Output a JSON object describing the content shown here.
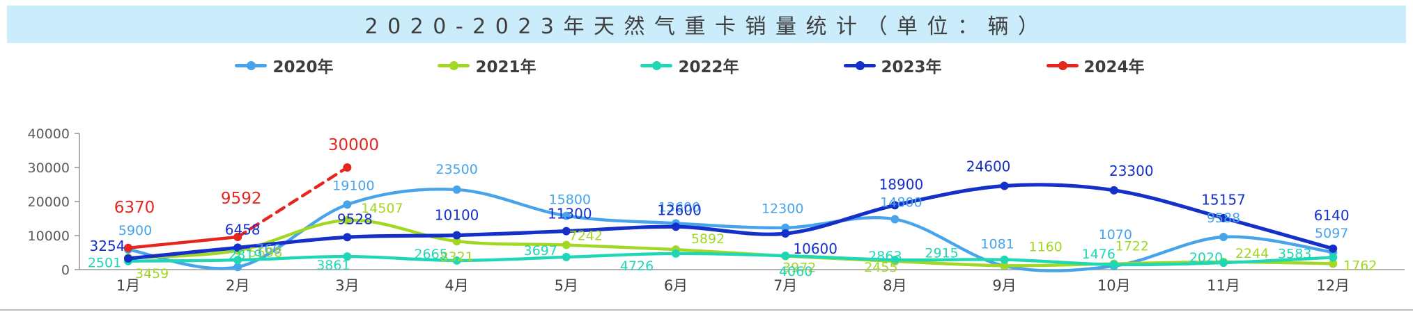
{
  "title": "2020-2023年天然气重卡销量统计（单位：辆）",
  "banner_bg": "#CBEDFB",
  "axis_color": "#9a9a9a",
  "chart_data": {
    "type": "line",
    "title": "2020-2023年天然气重卡销量统计（单位：辆）",
    "categories": [
      "1月",
      "2月",
      "3月",
      "4月",
      "5月",
      "6月",
      "7月",
      "8月",
      "9月",
      "10月",
      "11月",
      "12月"
    ],
    "y_axis": {
      "min": 0,
      "max": 40000,
      "step": 10000,
      "tick_labels": [
        "0",
        "10000",
        "20000",
        "30000",
        "40000"
      ]
    },
    "grid": "off",
    "legend_position": "top",
    "series": [
      {
        "name": "2020年",
        "color": "#47A4EB",
        "dashed": false,
        "label_size": 19,
        "values": [
          5900,
          766,
          19100,
          23500,
          15800,
          13600,
          12300,
          14800,
          1081,
          1070,
          9588,
          5097
        ],
        "label_offsets": [
          [
            10,
            -28
          ],
          [
            44,
            -26
          ],
          [
            9,
            -28
          ],
          [
            0,
            -30
          ],
          [
            5,
            -24
          ],
          [
            5,
            -24
          ],
          [
            -4,
            -28
          ],
          [
            9,
            -25
          ],
          [
            -10,
            -32
          ],
          [
            2,
            -46
          ],
          [
            0,
            -28
          ],
          [
            -2,
            -28
          ]
        ]
      },
      {
        "name": "2021年",
        "color": "#A2D723",
        "dashed": false,
        "label_size": 19,
        "values": [
          3459,
          5598,
          14507,
          8321,
          7242,
          5892,
          3972,
          2455,
          1160,
          1722,
          2244,
          1762
        ],
        "label_offsets": [
          [
            34,
            22
          ],
          [
            40,
            2
          ],
          [
            50,
            -18
          ],
          [
            0,
            22
          ],
          [
            28,
            -14
          ],
          [
            46,
            -16
          ],
          [
            20,
            16
          ],
          [
            -20,
            8
          ],
          [
            59,
            -28
          ],
          [
            26,
            -26
          ],
          [
            41,
            -13
          ],
          [
            39,
            2
          ]
        ]
      },
      {
        "name": "2022年",
        "color": "#1FD7B4",
        "dashed": false,
        "label_size": 19,
        "values": [
          2501,
          2819,
          3861,
          2665,
          3697,
          4726,
          4060,
          2863,
          2915,
          1476,
          2020,
          3583
        ],
        "label_offsets": [
          [
            -34,
            2
          ],
          [
            11,
            -8
          ],
          [
            -20,
            12
          ],
          [
            -37,
            -10
          ],
          [
            -37,
            -10
          ],
          [
            -56,
            17
          ],
          [
            15,
            22
          ],
          [
            -14,
            -6
          ],
          [
            -90,
            -10
          ],
          [
            -22,
            -16
          ],
          [
            -25,
            -8
          ],
          [
            -55,
            -6
          ]
        ]
      },
      {
        "name": "2023年",
        "color": "#1430C8",
        "dashed": false,
        "label_size": 20,
        "values": [
          3254,
          6458,
          9528,
          10100,
          11300,
          12600,
          10600,
          18900,
          24600,
          23300,
          15157,
          6140
        ],
        "label_offsets": [
          [
            -30,
            -18
          ],
          [
            7,
            -26
          ],
          [
            11,
            -26
          ],
          [
            0,
            -29
          ],
          [
            5,
            -25
          ],
          [
            5,
            -24
          ],
          [
            43,
            22
          ],
          [
            9,
            -30
          ],
          [
            -23,
            -28
          ],
          [
            25,
            -28
          ],
          [
            0,
            -26
          ],
          [
            -2,
            -48
          ]
        ]
      },
      {
        "name": "2024年",
        "color": "#E5261F",
        "dashed": true,
        "solid_until": 1,
        "label_size": 23,
        "values": [
          6370,
          9592,
          30000,
          null,
          null,
          null,
          null,
          null,
          null,
          null,
          null,
          null
        ],
        "label_offsets": [
          [
            9,
            -58
          ],
          [
            5,
            -55
          ],
          [
            9,
            -32
          ]
        ]
      }
    ]
  }
}
